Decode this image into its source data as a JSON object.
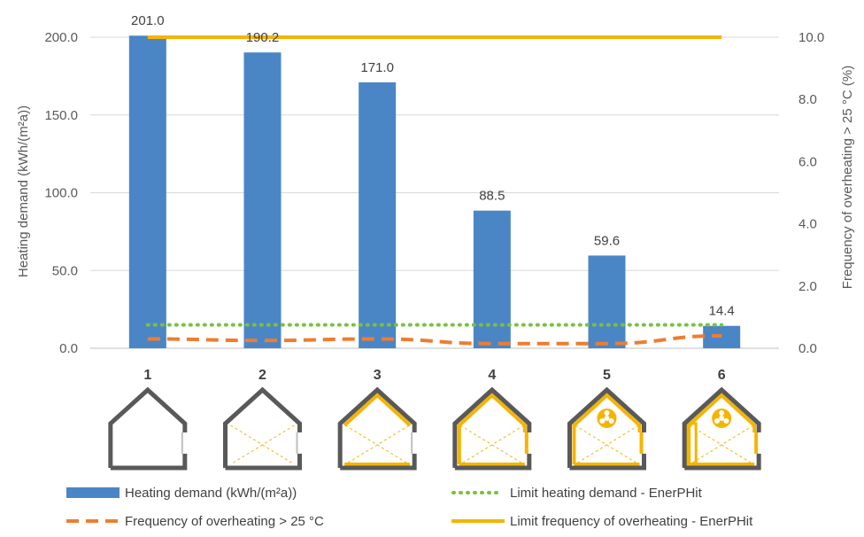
{
  "chart_data": {
    "type": "bar",
    "categories": [
      "1",
      "2",
      "3",
      "4",
      "5",
      "6"
    ],
    "series": [
      {
        "name": "Heating demand (kWh/(m²a))",
        "kind": "bar",
        "axis": "left",
        "color": "#4a86c6",
        "values": [
          201.0,
          190.2,
          171.0,
          88.5,
          59.6,
          14.4
        ],
        "labels": [
          "201.0",
          "190.2",
          "171.0",
          "88.5",
          "59.6",
          "14.4"
        ]
      },
      {
        "name": "Limit heating demand - EnerPHit",
        "kind": "line-dotted",
        "axis": "left",
        "color": "#7ac142",
        "values": [
          15,
          15,
          15,
          15,
          15,
          15
        ]
      },
      {
        "name": "Frequency of overheating > 25 °C",
        "kind": "line-dashed",
        "axis": "right",
        "color": "#ed7d31",
        "values": [
          0.3,
          0.25,
          0.3,
          0.15,
          0.15,
          0.4
        ]
      },
      {
        "name": "Limit frequency of overheating - EnerPHit",
        "kind": "line-solid",
        "axis": "right",
        "color": "#f5b400",
        "values": [
          10,
          10,
          10,
          10,
          10,
          10
        ]
      }
    ],
    "ylabel": "Heating demand (kWh/(m²a))",
    "y2label": "Frequency of overheating > 25 °C (%)",
    "ylim": [
      0,
      200
    ],
    "y2lim": [
      0,
      10
    ],
    "yticks": [
      "0.0",
      "50.0",
      "100.0",
      "150.0",
      "200.0"
    ],
    "y2ticks": [
      "0.0",
      "2.0",
      "4.0",
      "6.0",
      "8.0",
      "10.0"
    ],
    "grid": true,
    "legend_position": "bottom",
    "icons": [
      "house-outline-icon",
      "house-insulated-roof-icon",
      "house-insulated-walls-roof-icon",
      "house-insulated-walls-roof-windows-icon",
      "house-ventilation-icon",
      "house-full-retrofit-icon"
    ]
  }
}
